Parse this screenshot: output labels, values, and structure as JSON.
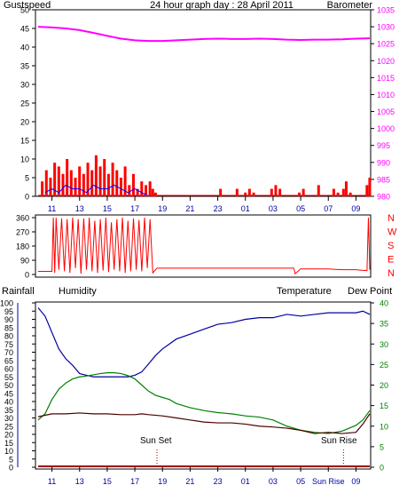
{
  "header": {
    "left": "Gustspeed",
    "center": "24 hour graph day : 28 April 2011",
    "right": "Barometer"
  },
  "bottom_header": {
    "rainfall": "Rainfall",
    "humidity": "Humidity",
    "temperature": "Temperature",
    "dewpoint": "Dew Point"
  },
  "annotations": {
    "sunset": "Sun Set",
    "sunrise": "Sun Rise"
  },
  "colors": {
    "gust": "#ff0000",
    "wind": "#0000ff",
    "green_wind": "#008000",
    "barometer": "#ff00ff",
    "direction": "#ff0000",
    "humidity": "#0000a0",
    "temperature": "#008000",
    "dewpoint": "#4a0000",
    "rain": "#a00000",
    "axis_blue": "#0000a0",
    "title": "#0000a0",
    "grid": "#000000"
  },
  "chart_data": [
    {
      "type": "line",
      "name": "gust-barometer",
      "title": "24 hour graph day : 28 April 2011",
      "x_ticks": [
        "11",
        "13",
        "15",
        "17",
        "19",
        "21",
        "23",
        "01",
        "03",
        "05",
        "07",
        "09"
      ],
      "left_axis": {
        "label": "Gustspeed",
        "ylim": [
          0,
          50
        ],
        "ticks": [
          0,
          5,
          10,
          15,
          20,
          25,
          30,
          35,
          40,
          45,
          50
        ]
      },
      "right_axis": {
        "label": "Barometer",
        "ylim": [
          980,
          1035
        ],
        "ticks": [
          980,
          985,
          990,
          995,
          1000,
          1005,
          1010,
          1015,
          1020,
          1025,
          1030,
          1035
        ]
      },
      "series": [
        {
          "name": "Barometer",
          "axis": "right",
          "x": [
            0,
            1,
            2,
            3,
            4,
            5,
            6,
            7,
            8,
            9,
            10,
            11,
            12,
            13,
            14,
            15,
            16,
            17,
            18,
            19,
            20,
            21,
            22,
            23,
            24
          ],
          "values": [
            1030,
            1029.8,
            1029.5,
            1029,
            1028.2,
            1027.3,
            1026.5,
            1026,
            1025.8,
            1025.8,
            1026,
            1026.2,
            1026.4,
            1026.5,
            1026.4,
            1026.4,
            1026.5,
            1026.4,
            1026.2,
            1026.1,
            1026.2,
            1026.2,
            1026.3,
            1026.5,
            1026.6
          ]
        },
        {
          "name": "Gustspeed",
          "axis": "left",
          "x": [
            0.2,
            0.5,
            0.8,
            1.1,
            1.4,
            1.7,
            2.0,
            2.3,
            2.6,
            2.9,
            3.2,
            3.5,
            3.8,
            4.1,
            4.4,
            4.7,
            5.0,
            5.3,
            5.6,
            5.9,
            6.2,
            6.5,
            6.8,
            7.1,
            7.4,
            7.7,
            8.0,
            8.2,
            8.4,
            13.1,
            14.3,
            14.9,
            15.2,
            15.5,
            16.8,
            17.1,
            17.4,
            18.8,
            19.1,
            20.2,
            21.3,
            21.6,
            22.0,
            22.2,
            22.5,
            23.7,
            23.9
          ],
          "values": [
            4,
            7,
            5,
            9,
            8,
            6,
            10,
            7,
            5,
            8,
            6,
            9,
            7,
            11,
            8,
            10,
            6,
            9,
            7,
            5,
            8,
            3,
            6,
            2,
            4,
            3,
            4,
            2,
            1,
            2,
            2,
            1,
            2,
            1,
            2,
            3,
            2,
            1,
            2,
            3,
            2,
            1,
            2,
            4,
            1,
            3,
            5
          ]
        },
        {
          "name": "Windspeed",
          "axis": "left",
          "x": [
            0.5,
            1.0,
            1.5,
            2.0,
            2.5,
            3.0,
            3.5,
            4.0,
            4.5,
            5.0,
            5.5,
            6.0,
            6.5,
            7.0,
            7.5,
            8.0
          ],
          "values": [
            1,
            2,
            1,
            3,
            2,
            2,
            1,
            3,
            2,
            2,
            3,
            2,
            1,
            2,
            1,
            0
          ]
        }
      ]
    },
    {
      "type": "line",
      "name": "wind-direction",
      "left_axis": {
        "ylim": [
          0,
          360
        ],
        "ticks": [
          0,
          90,
          180,
          270,
          360
        ]
      },
      "right_labels": [
        "N",
        "W",
        "S",
        "E",
        "N"
      ],
      "series": [
        {
          "name": "Direction",
          "x": [
            0,
            1.0,
            1.1,
            1.2,
            1.3,
            1.5,
            1.7,
            1.9,
            2.1,
            2.3,
            2.5,
            2.7,
            2.9,
            3.1,
            3.3,
            3.5,
            3.7,
            3.9,
            4.1,
            4.3,
            4.5,
            4.7,
            4.9,
            5.1,
            5.3,
            5.5,
            5.7,
            5.9,
            6.1,
            6.3,
            6.5,
            6.7,
            6.9,
            7.1,
            7.3,
            7.5,
            7.7,
            7.9,
            8.1,
            8.3,
            8.6,
            9,
            10,
            11,
            12,
            13,
            14,
            15,
            16,
            17,
            18,
            18.5,
            18.6,
            19,
            20,
            21,
            22,
            23,
            23.6,
            23.8,
            23.9,
            24
          ],
          "values": [
            20,
            20,
            360,
            10,
            360,
            30,
            355,
            20,
            350,
            10,
            360,
            40,
            350,
            5,
            355,
            30,
            360,
            20,
            340,
            10,
            350,
            25,
            360,
            15,
            330,
            30,
            350,
            20,
            360,
            10,
            340,
            20,
            355,
            30,
            345,
            20,
            360,
            40,
            350,
            10,
            40,
            40,
            40,
            40,
            40,
            40,
            40,
            40,
            40,
            40,
            40,
            40,
            5,
            35,
            35,
            35,
            30,
            30,
            25,
            25,
            360,
            30
          ]
        }
      ]
    },
    {
      "type": "line",
      "name": "humidity-temperature-dewpoint",
      "left_axis": {
        "label": "Humidity",
        "ylim": [
          0,
          100
        ],
        "ticks": [
          0,
          5,
          10,
          15,
          20,
          25,
          30,
          35,
          40,
          45,
          50,
          55,
          60,
          65,
          70,
          75,
          80,
          85,
          90,
          95,
          100
        ]
      },
      "right_axis": {
        "label": "Temperature / Dew Point",
        "ylim": [
          0,
          40
        ],
        "ticks": [
          0,
          5,
          10,
          15,
          20,
          25,
          30,
          35,
          40
        ]
      },
      "x_ticks": [
        "11",
        "13",
        "15",
        "17",
        "19",
        "21",
        "23",
        "01",
        "03",
        "05",
        "Sun Rise",
        "09"
      ],
      "series": [
        {
          "name": "Humidity",
          "axis": "left",
          "x": [
            0,
            0.5,
            1,
            1.5,
            2,
            2.5,
            3,
            3.5,
            4,
            4.5,
            5,
            5.5,
            6,
            6.5,
            7,
            7.5,
            8,
            8.5,
            9,
            9.5,
            10,
            11,
            12,
            13,
            14,
            15,
            16,
            17,
            18,
            19,
            20,
            21,
            22,
            23,
            23.5,
            24
          ],
          "values": [
            97,
            92,
            82,
            72,
            66,
            62,
            57,
            56,
            55,
            55,
            55,
            55,
            55,
            55,
            56,
            58,
            63,
            68,
            72,
            75,
            78,
            81,
            84,
            87,
            88,
            90,
            91,
            91,
            93,
            92,
            93,
            94,
            94,
            94,
            95,
            93
          ]
        },
        {
          "name": "Temperature",
          "axis": "right",
          "x": [
            0,
            0.5,
            1,
            1.5,
            2,
            2.5,
            3,
            3.5,
            4,
            4.5,
            5,
            5.5,
            6,
            6.5,
            7,
            7.5,
            8,
            8.5,
            9,
            9.5,
            10,
            11,
            12,
            13,
            14,
            15,
            16,
            17,
            18,
            19,
            20,
            21,
            22,
            23,
            23.5,
            24
          ],
          "values": [
            11.5,
            13,
            16.5,
            19,
            20.5,
            21.5,
            22,
            22.2,
            22.5,
            22.8,
            23,
            23,
            22.8,
            22.3,
            21.5,
            20,
            18.5,
            17.5,
            17,
            16.5,
            15.5,
            14.5,
            13.8,
            13.3,
            13,
            12.5,
            12.2,
            11.5,
            10,
            9,
            8.5,
            8.2,
            8.8,
            10.2,
            11.5,
            13.8
          ]
        },
        {
          "name": "Dew Point",
          "axis": "right",
          "x": [
            0,
            1,
            2,
            3,
            4,
            5,
            6,
            7,
            7.5,
            8,
            9,
            10,
            11,
            12,
            13,
            14,
            15,
            16,
            17,
            18,
            19,
            20,
            21,
            22,
            23,
            23.5,
            24
          ],
          "values": [
            12.3,
            13,
            13,
            13.2,
            13,
            13,
            12.8,
            12.8,
            13,
            12.8,
            12.5,
            12,
            11.5,
            11,
            10.8,
            10.8,
            10.5,
            10,
            9.8,
            9.5,
            9,
            8.2,
            8.5,
            8.2,
            8.5,
            10.5,
            13
          ]
        },
        {
          "name": "Rainfall",
          "axis": "left",
          "x": [
            0,
            24
          ],
          "values": [
            0,
            0
          ]
        }
      ],
      "annotations": [
        {
          "label": "Sun Set",
          "x": 8.6
        },
        {
          "label": "Sun Rise",
          "x": 22.1
        }
      ]
    }
  ]
}
